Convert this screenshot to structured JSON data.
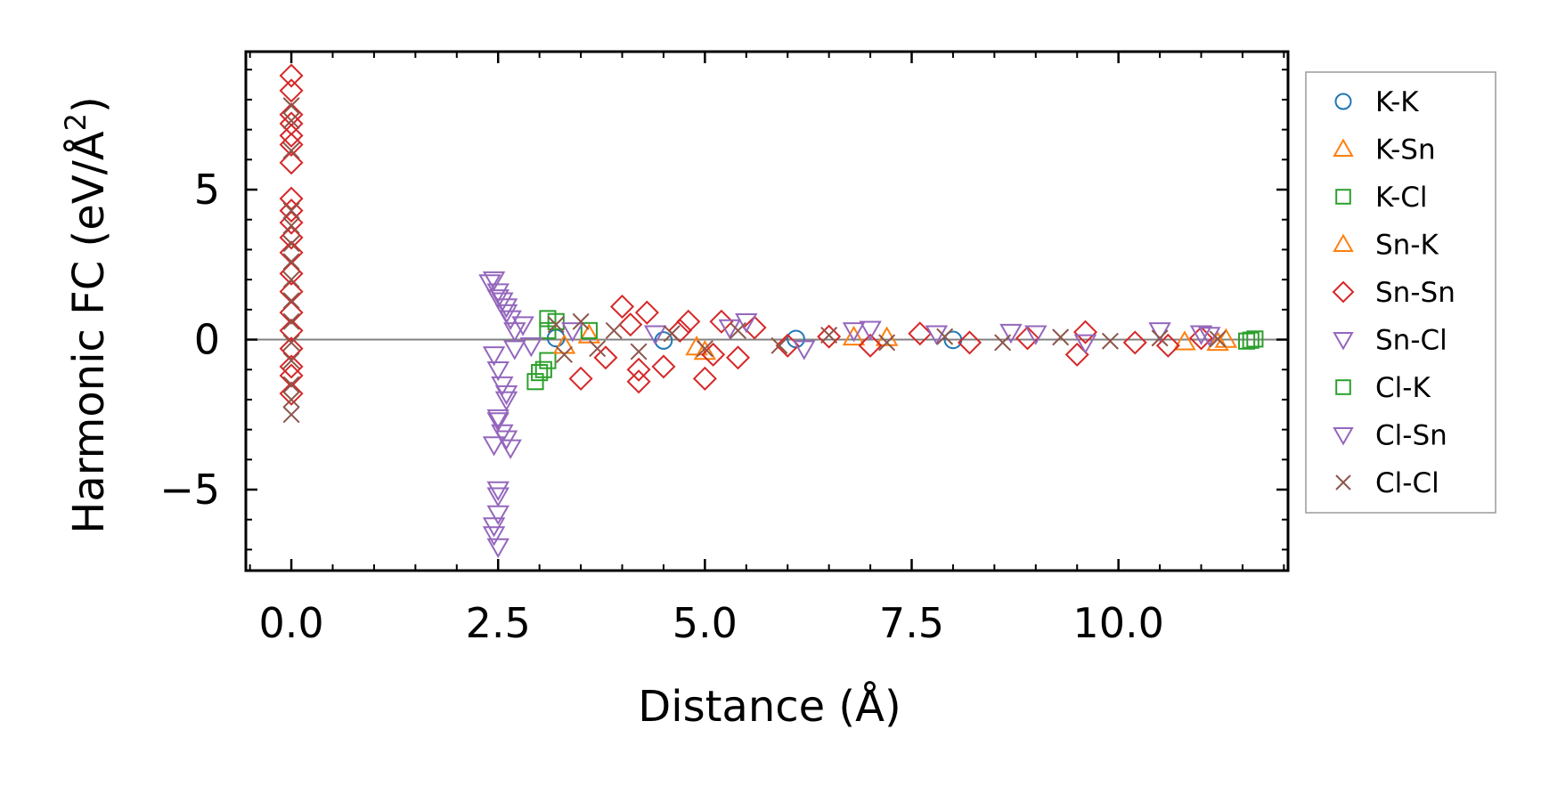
{
  "chart_data": {
    "type": "scatter",
    "title": "",
    "xlabel": "Distance (Å)",
    "ylabel_main": "Harmonic FC (eV/Å",
    "ylabel_sup": "2",
    "ylabel_close": ")",
    "xlim": [
      -0.55,
      12.05
    ],
    "ylim": [
      -7.7,
      9.6
    ],
    "xticks": [
      0.0,
      2.5,
      5.0,
      7.5,
      10.0
    ],
    "xtick_labels": [
      "0.0",
      "2.5",
      "5.0",
      "7.5",
      "10.0"
    ],
    "xminor_step": 0.5,
    "yticks": [
      -5,
      0,
      5
    ],
    "ytick_labels": [
      "−5",
      "0",
      "5"
    ],
    "yminor_step": 1,
    "zero_line": true,
    "legend_position": "outside-right",
    "series": [
      {
        "name": "K-K",
        "marker": "circle",
        "color": "#1f77b4",
        "points": [
          [
            3.2,
            0.05
          ],
          [
            4.5,
            -0.03
          ],
          [
            6.1,
            0.02
          ],
          [
            8.0,
            -0.01
          ]
        ]
      },
      {
        "name": "K-Sn",
        "marker": "triangle-up",
        "color": "#ff7f0e",
        "points": [
          [
            3.6,
            0.15
          ],
          [
            4.9,
            -0.25
          ],
          [
            6.8,
            0.08
          ],
          [
            11.2,
            -0.1
          ],
          [
            11.3,
            0.0
          ]
        ]
      },
      {
        "name": "K-Cl",
        "marker": "square",
        "color": "#2ca02c",
        "points": [
          [
            2.95,
            -1.4
          ],
          [
            3.05,
            -1.0
          ],
          [
            3.1,
            -0.7
          ],
          [
            3.1,
            0.3
          ],
          [
            3.2,
            0.6
          ],
          [
            3.6,
            0.3
          ],
          [
            11.65,
            0.02
          ],
          [
            11.55,
            -0.05
          ]
        ]
      },
      {
        "name": "Sn-K",
        "marker": "triangle-up",
        "color": "#ff7f0e",
        "points": [
          [
            3.3,
            -0.2
          ],
          [
            5.0,
            -0.4
          ],
          [
            7.2,
            0.06
          ],
          [
            10.8,
            -0.08
          ]
        ]
      },
      {
        "name": "Sn-Sn",
        "marker": "diamond",
        "color": "#d62728",
        "points": [
          [
            0.0,
            8.8
          ],
          [
            0.0,
            8.3
          ],
          [
            0.0,
            7.5
          ],
          [
            0.0,
            7.2
          ],
          [
            0.0,
            6.8
          ],
          [
            0.0,
            6.5
          ],
          [
            0.0,
            5.9
          ],
          [
            0.0,
            4.7
          ],
          [
            0.0,
            4.3
          ],
          [
            0.0,
            3.9
          ],
          [
            0.0,
            3.4
          ],
          [
            0.0,
            2.9
          ],
          [
            0.0,
            2.2
          ],
          [
            0.0,
            1.6
          ],
          [
            0.0,
            0.9
          ],
          [
            0.0,
            0.3
          ],
          [
            0.0,
            -0.3
          ],
          [
            0.0,
            -0.9
          ],
          [
            0.0,
            -1.2
          ],
          [
            0.0,
            -1.8
          ],
          [
            3.5,
            -1.3
          ],
          [
            3.8,
            -0.6
          ],
          [
            4.0,
            1.1
          ],
          [
            4.1,
            0.5
          ],
          [
            4.2,
            -1.0
          ],
          [
            4.2,
            -1.4
          ],
          [
            4.3,
            0.9
          ],
          [
            4.5,
            -0.9
          ],
          [
            4.7,
            0.3
          ],
          [
            4.8,
            0.6
          ],
          [
            5.0,
            -1.3
          ],
          [
            5.1,
            -0.5
          ],
          [
            5.2,
            0.6
          ],
          [
            5.4,
            -0.6
          ],
          [
            5.6,
            0.4
          ],
          [
            6.0,
            -0.2
          ],
          [
            6.5,
            0.1
          ],
          [
            7.0,
            -0.2
          ],
          [
            7.6,
            0.2
          ],
          [
            8.2,
            -0.1
          ],
          [
            8.9,
            0.05
          ],
          [
            9.5,
            -0.5
          ],
          [
            9.6,
            0.25
          ],
          [
            10.2,
            -0.1
          ],
          [
            10.6,
            -0.2
          ],
          [
            11.0,
            0.05
          ]
        ]
      },
      {
        "name": "Sn-Cl",
        "marker": "triangle-down",
        "color": "#9467bd",
        "points": [
          [
            2.45,
            2.0
          ],
          [
            2.5,
            1.6
          ],
          [
            2.55,
            1.3
          ],
          [
            2.6,
            1.1
          ],
          [
            2.65,
            0.7
          ],
          [
            2.7,
            0.3
          ],
          [
            2.8,
            0.5
          ],
          [
            2.9,
            -0.2
          ],
          [
            2.45,
            -0.5
          ],
          [
            2.5,
            -1.0
          ],
          [
            2.55,
            -1.5
          ],
          [
            2.6,
            -2.0
          ],
          [
            2.5,
            -2.6
          ],
          [
            2.55,
            -3.1
          ],
          [
            2.45,
            -3.5
          ],
          [
            2.65,
            -3.6
          ],
          [
            2.5,
            -5.2
          ],
          [
            2.5,
            -5.8
          ],
          [
            2.45,
            -6.2
          ],
          [
            2.5,
            -6.9
          ],
          [
            3.4,
            0.3
          ],
          [
            4.4,
            0.2
          ],
          [
            5.5,
            0.6
          ],
          [
            6.2,
            -0.3
          ],
          [
            7.0,
            0.35
          ],
          [
            7.8,
            0.2
          ],
          [
            8.7,
            0.25
          ],
          [
            9.6,
            -0.1
          ],
          [
            10.5,
            0.3
          ],
          [
            11.1,
            0.15
          ]
        ]
      },
      {
        "name": "Cl-K",
        "marker": "square",
        "color": "#2ca02c",
        "points": [
          [
            3.0,
            -1.1
          ],
          [
            3.1,
            0.7
          ],
          [
            11.6,
            -0.02
          ]
        ]
      },
      {
        "name": "Cl-Sn",
        "marker": "triangle-down",
        "color": "#9467bd",
        "points": [
          [
            2.4,
            1.9
          ],
          [
            2.5,
            1.4
          ],
          [
            2.6,
            0.9
          ],
          [
            2.7,
            -0.3
          ],
          [
            2.6,
            -1.8
          ],
          [
            2.5,
            -2.7
          ],
          [
            2.6,
            -3.3
          ],
          [
            2.5,
            -5.0
          ],
          [
            2.45,
            -6.5
          ],
          [
            5.3,
            0.4
          ],
          [
            6.8,
            0.3
          ],
          [
            9.0,
            0.2
          ],
          [
            11.0,
            0.2
          ]
        ]
      },
      {
        "name": "Cl-Cl",
        "marker": "x",
        "color": "#8c564b",
        "points": [
          [
            0.0,
            7.8
          ],
          [
            0.0,
            7.3
          ],
          [
            0.0,
            6.3
          ],
          [
            0.0,
            4.3
          ],
          [
            0.0,
            3.8
          ],
          [
            0.0,
            3.2
          ],
          [
            0.0,
            2.6
          ],
          [
            0.0,
            2.0
          ],
          [
            0.0,
            1.3
          ],
          [
            0.0,
            0.6
          ],
          [
            0.0,
            -0.1
          ],
          [
            0.0,
            -0.7
          ],
          [
            0.0,
            -1.5
          ],
          [
            0.0,
            -2.0
          ],
          [
            0.0,
            -2.5
          ],
          [
            3.2,
            0.5
          ],
          [
            3.3,
            -0.5
          ],
          [
            3.5,
            0.6
          ],
          [
            3.7,
            -0.3
          ],
          [
            3.9,
            0.3
          ],
          [
            4.2,
            -0.4
          ],
          [
            4.6,
            0.2
          ],
          [
            5.0,
            -0.3
          ],
          [
            5.4,
            0.3
          ],
          [
            5.9,
            -0.2
          ],
          [
            6.5,
            0.15
          ],
          [
            7.2,
            -0.1
          ],
          [
            7.9,
            0.1
          ],
          [
            8.6,
            -0.1
          ],
          [
            9.3,
            0.08
          ],
          [
            9.9,
            -0.05
          ],
          [
            10.5,
            0.05
          ],
          [
            11.2,
            0.02
          ]
        ]
      }
    ]
  }
}
